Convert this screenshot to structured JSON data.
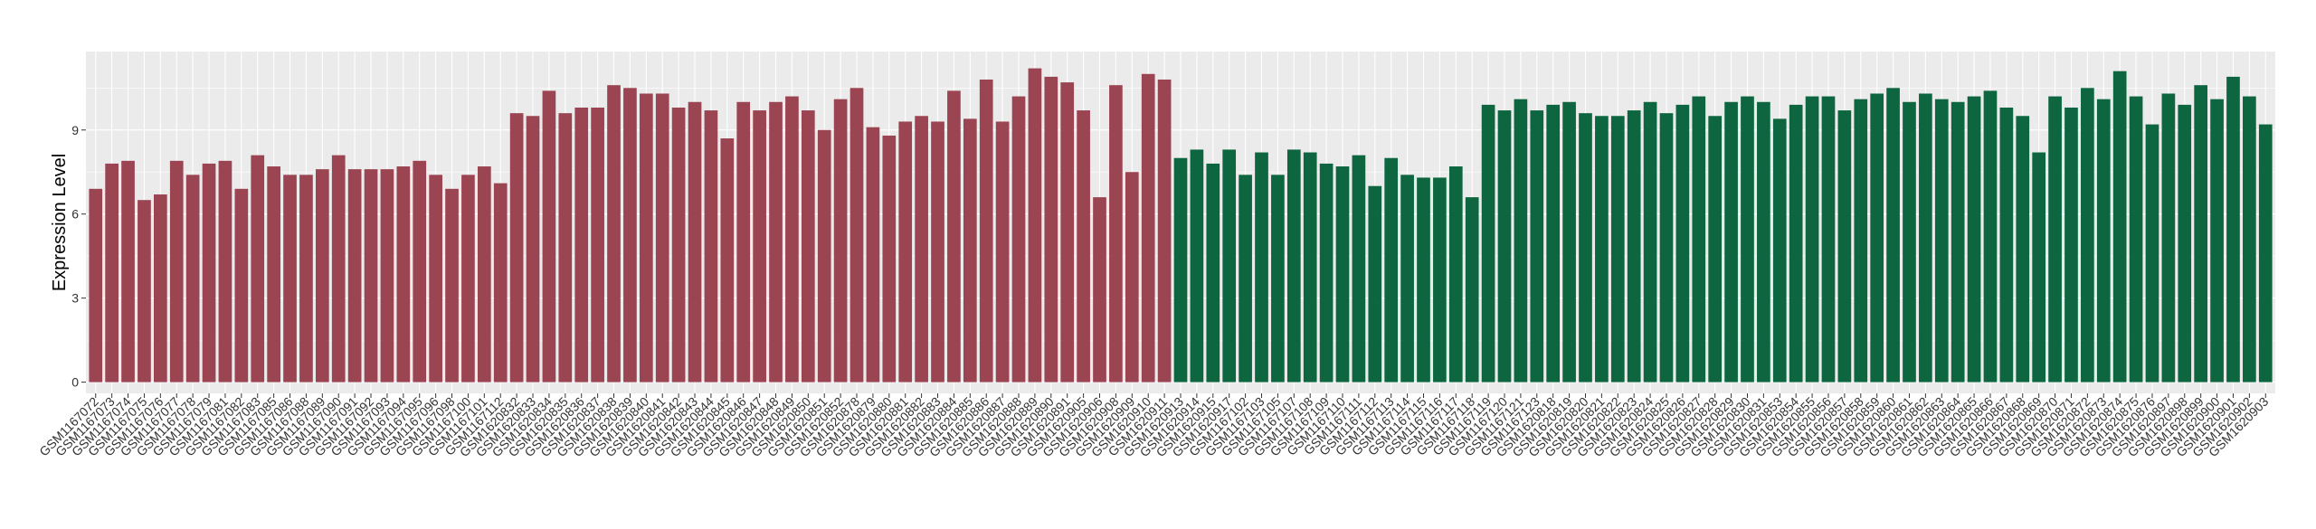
{
  "chart_data": {
    "type": "bar",
    "title": "",
    "xlabel": "",
    "ylabel": "Expression Level",
    "ylim": [
      -0.4,
      11.8
    ],
    "yticks": [
      0,
      3,
      6,
      9
    ],
    "grid": true,
    "legend": "none",
    "colors": {
      "group_a": "#9b4452",
      "group_b": "#0d6640",
      "panel_bg": "#ebebeb",
      "grid": "#ffffff",
      "text": "#333333"
    },
    "bars": [
      {
        "label": "GSM1167072",
        "value": 6.9,
        "group": "a"
      },
      {
        "label": "GSM1167073",
        "value": 7.8,
        "group": "a"
      },
      {
        "label": "GSM1167074",
        "value": 7.9,
        "group": "a"
      },
      {
        "label": "GSM1167075",
        "value": 6.5,
        "group": "a"
      },
      {
        "label": "GSM1167076",
        "value": 6.7,
        "group": "a"
      },
      {
        "label": "GSM1167077",
        "value": 7.9,
        "group": "a"
      },
      {
        "label": "GSM1167078",
        "value": 7.4,
        "group": "a"
      },
      {
        "label": "GSM1167079",
        "value": 7.8,
        "group": "a"
      },
      {
        "label": "GSM1167081",
        "value": 7.9,
        "group": "a"
      },
      {
        "label": "GSM1167082",
        "value": 6.9,
        "group": "a"
      },
      {
        "label": "GSM1167083",
        "value": 8.1,
        "group": "a"
      },
      {
        "label": "GSM1167085",
        "value": 7.7,
        "group": "a"
      },
      {
        "label": "GSM1167086",
        "value": 7.4,
        "group": "a"
      },
      {
        "label": "GSM1167088",
        "value": 7.4,
        "group": "a"
      },
      {
        "label": "GSM1167089",
        "value": 7.6,
        "group": "a"
      },
      {
        "label": "GSM1167090",
        "value": 8.1,
        "group": "a"
      },
      {
        "label": "GSM1167091",
        "value": 7.6,
        "group": "a"
      },
      {
        "label": "GSM1167092",
        "value": 7.6,
        "group": "a"
      },
      {
        "label": "GSM1167093",
        "value": 7.6,
        "group": "a"
      },
      {
        "label": "GSM1167094",
        "value": 7.7,
        "group": "a"
      },
      {
        "label": "GSM1167095",
        "value": 7.9,
        "group": "a"
      },
      {
        "label": "GSM1167096",
        "value": 7.4,
        "group": "a"
      },
      {
        "label": "GSM1167098",
        "value": 6.9,
        "group": "a"
      },
      {
        "label": "GSM1167100",
        "value": 7.4,
        "group": "a"
      },
      {
        "label": "GSM1167101",
        "value": 7.7,
        "group": "a"
      },
      {
        "label": "GSM1167112",
        "value": 7.1,
        "group": "a"
      },
      {
        "label": "GSM1620832",
        "value": 9.6,
        "group": "a"
      },
      {
        "label": "GSM1620833",
        "value": 9.5,
        "group": "a"
      },
      {
        "label": "GSM1620834",
        "value": 10.4,
        "group": "a"
      },
      {
        "label": "GSM1620835",
        "value": 9.6,
        "group": "a"
      },
      {
        "label": "GSM1620836",
        "value": 9.8,
        "group": "a"
      },
      {
        "label": "GSM1620837",
        "value": 9.8,
        "group": "a"
      },
      {
        "label": "GSM1620838",
        "value": 10.6,
        "group": "a"
      },
      {
        "label": "GSM1620839",
        "value": 10.5,
        "group": "a"
      },
      {
        "label": "GSM1620840",
        "value": 10.3,
        "group": "a"
      },
      {
        "label": "GSM1620841",
        "value": 10.3,
        "group": "a"
      },
      {
        "label": "GSM1620842",
        "value": 9.8,
        "group": "a"
      },
      {
        "label": "GSM1620843",
        "value": 10.0,
        "group": "a"
      },
      {
        "label": "GSM1620844",
        "value": 9.7,
        "group": "a"
      },
      {
        "label": "GSM1620845",
        "value": 8.7,
        "group": "a"
      },
      {
        "label": "GSM1620846",
        "value": 10.0,
        "group": "a"
      },
      {
        "label": "GSM1620847",
        "value": 9.7,
        "group": "a"
      },
      {
        "label": "GSM1620848",
        "value": 10.0,
        "group": "a"
      },
      {
        "label": "GSM1620849",
        "value": 10.2,
        "group": "a"
      },
      {
        "label": "GSM1620850",
        "value": 9.7,
        "group": "a"
      },
      {
        "label": "GSM1620851",
        "value": 9.0,
        "group": "a"
      },
      {
        "label": "GSM1620852",
        "value": 10.1,
        "group": "a"
      },
      {
        "label": "GSM1620878",
        "value": 10.5,
        "group": "a"
      },
      {
        "label": "GSM1620879",
        "value": 9.1,
        "group": "a"
      },
      {
        "label": "GSM1620880",
        "value": 8.8,
        "group": "a"
      },
      {
        "label": "GSM1620881",
        "value": 9.3,
        "group": "a"
      },
      {
        "label": "GSM1620882",
        "value": 9.5,
        "group": "a"
      },
      {
        "label": "GSM1620883",
        "value": 9.3,
        "group": "a"
      },
      {
        "label": "GSM1620884",
        "value": 10.4,
        "group": "a"
      },
      {
        "label": "GSM1620885",
        "value": 9.4,
        "group": "a"
      },
      {
        "label": "GSM1620886",
        "value": 10.8,
        "group": "a"
      },
      {
        "label": "GSM1620887",
        "value": 9.3,
        "group": "a"
      },
      {
        "label": "GSM1620888",
        "value": 10.2,
        "group": "a"
      },
      {
        "label": "GSM1620889",
        "value": 11.2,
        "group": "a"
      },
      {
        "label": "GSM1620890",
        "value": 10.9,
        "group": "a"
      },
      {
        "label": "GSM1620891",
        "value": 10.7,
        "group": "a"
      },
      {
        "label": "GSM1620905",
        "value": 9.7,
        "group": "a"
      },
      {
        "label": "GSM1620906",
        "value": 6.6,
        "group": "a"
      },
      {
        "label": "GSM1620908",
        "value": 10.6,
        "group": "a"
      },
      {
        "label": "GSM1620909",
        "value": 7.5,
        "group": "a"
      },
      {
        "label": "GSM1620910",
        "value": 11.0,
        "group": "a"
      },
      {
        "label": "GSM1620911",
        "value": 10.8,
        "group": "a"
      },
      {
        "label": "GSM1620913",
        "value": 8.0,
        "group": "b"
      },
      {
        "label": "GSM1620914",
        "value": 8.3,
        "group": "b"
      },
      {
        "label": "GSM1620915",
        "value": 7.8,
        "group": "b"
      },
      {
        "label": "GSM1620917",
        "value": 8.3,
        "group": "b"
      },
      {
        "label": "GSM1167102",
        "value": 7.4,
        "group": "b"
      },
      {
        "label": "GSM1167103",
        "value": 8.2,
        "group": "b"
      },
      {
        "label": "GSM1167105",
        "value": 7.4,
        "group": "b"
      },
      {
        "label": "GSM1167107",
        "value": 8.3,
        "group": "b"
      },
      {
        "label": "GSM1167108",
        "value": 8.2,
        "group": "b"
      },
      {
        "label": "GSM1167109",
        "value": 7.8,
        "group": "b"
      },
      {
        "label": "GSM1167110",
        "value": 7.7,
        "group": "b"
      },
      {
        "label": "GSM1167111",
        "value": 8.1,
        "group": "b"
      },
      {
        "label": "GSM1167112",
        "value": 7.0,
        "group": "b"
      },
      {
        "label": "GSM1167113",
        "value": 8.0,
        "group": "b"
      },
      {
        "label": "GSM1167114",
        "value": 7.4,
        "group": "b"
      },
      {
        "label": "GSM1167115",
        "value": 7.3,
        "group": "b"
      },
      {
        "label": "GSM1167116",
        "value": 7.3,
        "group": "b"
      },
      {
        "label": "GSM1167117",
        "value": 7.7,
        "group": "b"
      },
      {
        "label": "GSM1167118",
        "value": 6.6,
        "group": "b"
      },
      {
        "label": "GSM1167119",
        "value": 9.9,
        "group": "b"
      },
      {
        "label": "GSM1167120",
        "value": 9.7,
        "group": "b"
      },
      {
        "label": "GSM1167121",
        "value": 10.1,
        "group": "b"
      },
      {
        "label": "GSM1167123",
        "value": 9.7,
        "group": "b"
      },
      {
        "label": "GSM1620818",
        "value": 9.9,
        "group": "b"
      },
      {
        "label": "GSM1620819",
        "value": 10.0,
        "group": "b"
      },
      {
        "label": "GSM1620820",
        "value": 9.6,
        "group": "b"
      },
      {
        "label": "GSM1620821",
        "value": 9.5,
        "group": "b"
      },
      {
        "label": "GSM1620822",
        "value": 9.5,
        "group": "b"
      },
      {
        "label": "GSM1620823",
        "value": 9.7,
        "group": "b"
      },
      {
        "label": "GSM1620824",
        "value": 10.0,
        "group": "b"
      },
      {
        "label": "GSM1620825",
        "value": 9.6,
        "group": "b"
      },
      {
        "label": "GSM1620826",
        "value": 9.9,
        "group": "b"
      },
      {
        "label": "GSM1620827",
        "value": 10.2,
        "group": "b"
      },
      {
        "label": "GSM1620828",
        "value": 9.5,
        "group": "b"
      },
      {
        "label": "GSM1620829",
        "value": 10.0,
        "group": "b"
      },
      {
        "label": "GSM1620830",
        "value": 10.2,
        "group": "b"
      },
      {
        "label": "GSM1620831",
        "value": 10.0,
        "group": "b"
      },
      {
        "label": "GSM1620853",
        "value": 9.4,
        "group": "b"
      },
      {
        "label": "GSM1620854",
        "value": 9.9,
        "group": "b"
      },
      {
        "label": "GSM1620855",
        "value": 10.2,
        "group": "b"
      },
      {
        "label": "GSM1620856",
        "value": 10.2,
        "group": "b"
      },
      {
        "label": "GSM1620857",
        "value": 9.7,
        "group": "b"
      },
      {
        "label": "GSM1620858",
        "value": 10.1,
        "group": "b"
      },
      {
        "label": "GSM1620859",
        "value": 10.3,
        "group": "b"
      },
      {
        "label": "GSM1620860",
        "value": 10.5,
        "group": "b"
      },
      {
        "label": "GSM1620861",
        "value": 10.0,
        "group": "b"
      },
      {
        "label": "GSM1620862",
        "value": 10.3,
        "group": "b"
      },
      {
        "label": "GSM1620863",
        "value": 10.1,
        "group": "b"
      },
      {
        "label": "GSM1620864",
        "value": 10.0,
        "group": "b"
      },
      {
        "label": "GSM1620865",
        "value": 10.2,
        "group": "b"
      },
      {
        "label": "GSM1620866",
        "value": 10.4,
        "group": "b"
      },
      {
        "label": "GSM1620867",
        "value": 9.8,
        "group": "b"
      },
      {
        "label": "GSM1620868",
        "value": 9.5,
        "group": "b"
      },
      {
        "label": "GSM1620869",
        "value": 8.2,
        "group": "b"
      },
      {
        "label": "GSM1620870",
        "value": 10.2,
        "group": "b"
      },
      {
        "label": "GSM1620871",
        "value": 9.8,
        "group": "b"
      },
      {
        "label": "GSM1620872",
        "value": 10.5,
        "group": "b"
      },
      {
        "label": "GSM1620873",
        "value": 10.1,
        "group": "b"
      },
      {
        "label": "GSM1620874",
        "value": 11.1,
        "group": "b"
      },
      {
        "label": "GSM1620875",
        "value": 10.2,
        "group": "b"
      },
      {
        "label": "GSM1620876",
        "value": 9.2,
        "group": "b"
      },
      {
        "label": "GSM1620897",
        "value": 10.3,
        "group": "b"
      },
      {
        "label": "GSM1620898",
        "value": 9.9,
        "group": "b"
      },
      {
        "label": "GSM1620899",
        "value": 10.6,
        "group": "b"
      },
      {
        "label": "GSM1620900",
        "value": 10.1,
        "group": "b"
      },
      {
        "label": "GSM1620901",
        "value": 10.9,
        "group": "b"
      },
      {
        "label": "GSM1620902",
        "value": 10.2,
        "group": "b"
      },
      {
        "label": "GSM1620903",
        "value": 9.2,
        "group": "b"
      }
    ]
  }
}
